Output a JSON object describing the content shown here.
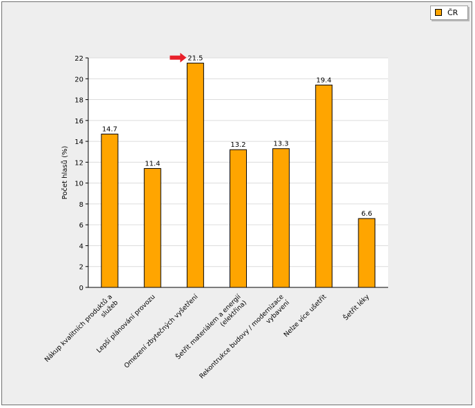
{
  "legend": {
    "label": "ČR",
    "color": "#FFA500"
  },
  "chart_data": {
    "type": "bar",
    "categories": [
      [
        "Nákup kvalitních produktů a",
        "služeb"
      ],
      [
        "Lepší plánování provozu"
      ],
      [
        "Omezení zbytečných vyšetření"
      ],
      [
        "Šetřit materiálem a energií",
        "(elektřina)"
      ],
      [
        "Rekontrukce budovy / modernizace",
        "vybavení"
      ],
      [
        "Nelze více ušetřit"
      ],
      [
        "Šetřit léky"
      ]
    ],
    "series": [
      {
        "name": "ČR",
        "values": [
          14.7,
          11.4,
          21.5,
          13.2,
          13.3,
          19.4,
          6.6
        ],
        "color": "#FFA500"
      }
    ],
    "value_labels": [
      "14.7",
      "11.4",
      "21.5",
      "13.2",
      "13.3",
      "19.4",
      "6.6"
    ],
    "ylabel": "Počet hlasů (%)",
    "ylim": [
      0,
      22
    ],
    "yticks": [
      "0",
      "2",
      "4",
      "6",
      "8",
      "10",
      "12",
      "14",
      "16",
      "18",
      "20",
      "22"
    ],
    "grid": true,
    "legend_position": "top-right",
    "highlight_index": 2,
    "highlight_color": "#E8202A"
  }
}
